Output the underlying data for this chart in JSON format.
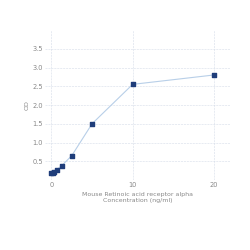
{
  "x": [
    0,
    0.156,
    0.313,
    0.625,
    1.25,
    2.5,
    5,
    10,
    20
  ],
  "y": [
    0.175,
    0.2,
    0.22,
    0.27,
    0.38,
    0.65,
    1.5,
    2.55,
    2.8
  ],
  "line_color": "#b8cfe8",
  "marker_color": "#1f3d7a",
  "marker_size": 9,
  "xlabel_line1": "Mouse Retinoic acid receptor alpha",
  "xlabel_line2": "Concentration (ng/ml)",
  "ylabel": "OD",
  "xlim": [
    -0.8,
    22
  ],
  "ylim": [
    0,
    4.0
  ],
  "xticks": [
    0,
    10,
    20
  ],
  "yticks": [
    0.5,
    1.0,
    1.5,
    2.0,
    2.5,
    3.0,
    3.5
  ],
  "grid_color": "#d5dce8",
  "bg_color": "#ffffff",
  "label_fontsize": 4.5,
  "tick_fontsize": 4.8
}
